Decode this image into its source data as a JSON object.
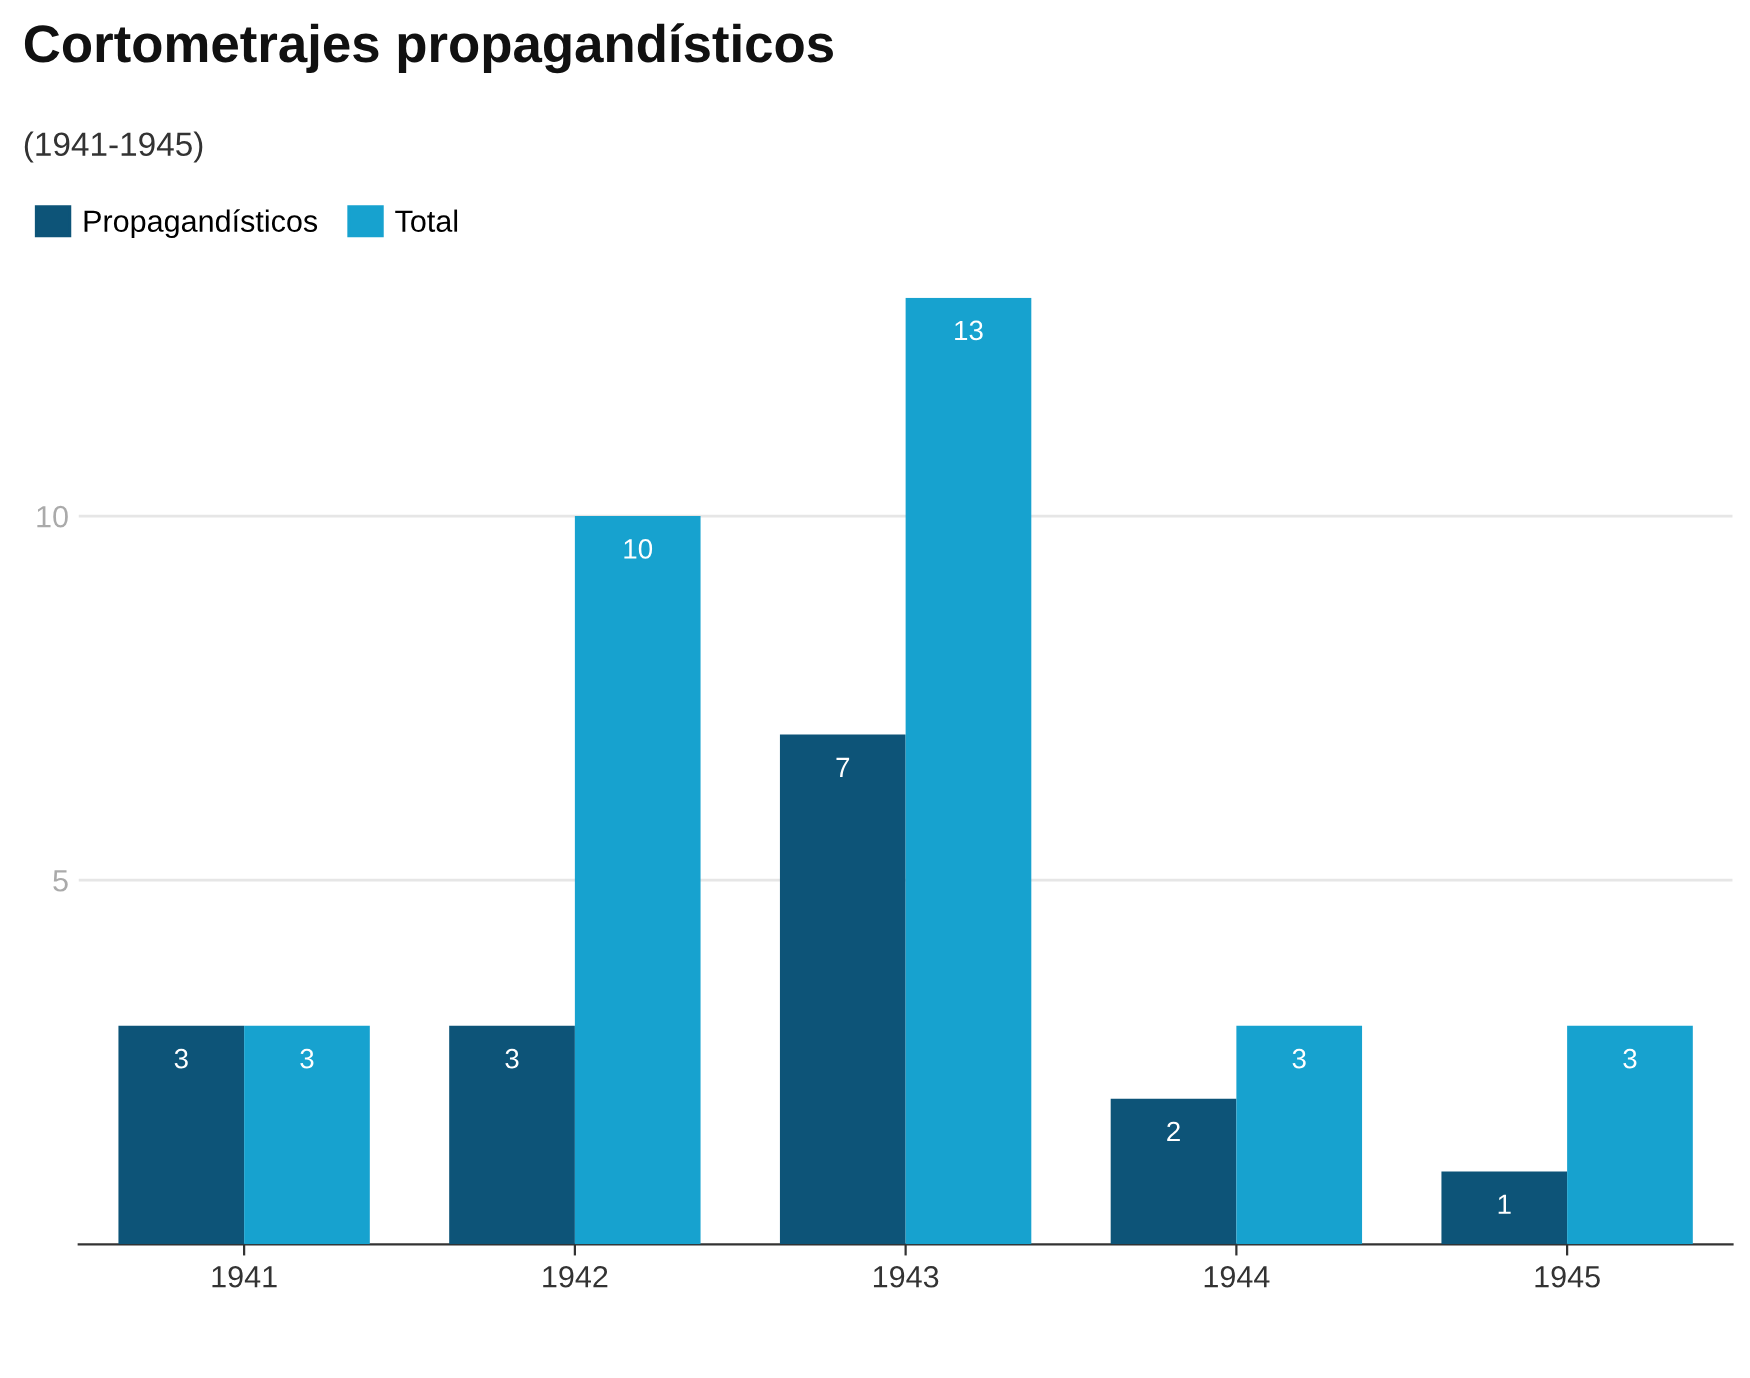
{
  "chart_data": {
    "type": "bar",
    "title": "Cortometrajes propagandísticos",
    "subtitle": "(1941-1945)",
    "categories": [
      "1941",
      "1942",
      "1943",
      "1944",
      "1945"
    ],
    "series": [
      {
        "name": "Propagandísticos",
        "color": "#0d5478",
        "values": [
          3,
          3,
          7,
          2,
          1
        ]
      },
      {
        "name": "Total",
        "color": "#17a2cf",
        "values": [
          3,
          10,
          13,
          3,
          3
        ]
      }
    ],
    "ylim": [
      0,
      13
    ],
    "yticks": [
      5,
      10
    ],
    "grid": "y",
    "legend": "top left",
    "data_labels": true
  }
}
